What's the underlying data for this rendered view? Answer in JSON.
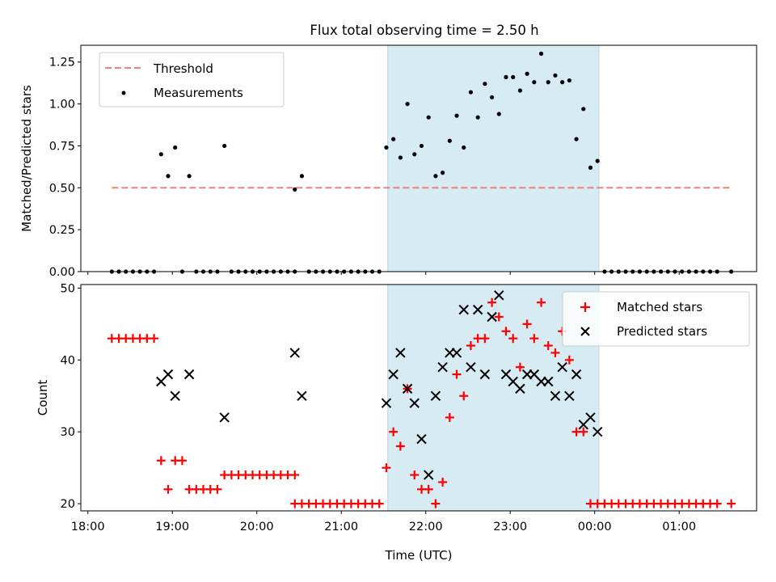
{
  "figure": {
    "title": "Flux total observing time = 2.50 h",
    "xlabel": "Time (UTC)",
    "x_ticks": [
      "18:00",
      "19:00",
      "20:00",
      "21:00",
      "22:00",
      "23:00",
      "00:00",
      "01:00"
    ]
  },
  "colors": {
    "threshold": "#f08080",
    "measurement": "#000000",
    "matched": "#ff0000",
    "predicted": "#000000",
    "span": "#add8e6"
  },
  "chart_data": [
    {
      "type": "scatter",
      "title": "Flux total observing time = 2.50 h",
      "ylabel": "Matched/Predicted stars",
      "xlim": [
        "17:55",
        "01:55"
      ],
      "ylim": [
        0,
        1.35
      ],
      "y_ticks": [
        "0.00",
        "0.25",
        "0.50",
        "0.75",
        "1.00",
        "1.25"
      ],
      "legend_position": "top-left",
      "highlight_span": [
        "21:33",
        "00:03"
      ],
      "threshold": {
        "name": "Threshold",
        "y": 0.5,
        "x": [
          "18:17",
          "01:37"
        ]
      },
      "series": [
        {
          "name": "Measurements",
          "points": [
            [
              "18:17",
              0
            ],
            [
              "18:22",
              0
            ],
            [
              "18:27",
              0
            ],
            [
              "18:32",
              0
            ],
            [
              "18:37",
              0
            ],
            [
              "18:42",
              0
            ],
            [
              "18:47",
              0
            ],
            [
              "18:52",
              0.7
            ],
            [
              "18:57",
              0.57
            ],
            [
              "19:02",
              0.74
            ],
            [
              "19:07",
              0
            ],
            [
              "19:12",
              0.57
            ],
            [
              "19:17",
              0
            ],
            [
              "19:22",
              0
            ],
            [
              "19:27",
              0
            ],
            [
              "19:32",
              0
            ],
            [
              "19:37",
              0.75
            ],
            [
              "19:42",
              0
            ],
            [
              "19:47",
              0
            ],
            [
              "19:52",
              0
            ],
            [
              "19:57",
              0
            ],
            [
              "20:02",
              0
            ],
            [
              "20:07",
              0
            ],
            [
              "20:12",
              0
            ],
            [
              "20:17",
              0
            ],
            [
              "20:22",
              0
            ],
            [
              "20:27",
              0
            ],
            [
              "20:27",
              0.49
            ],
            [
              "20:32",
              0.57
            ],
            [
              "20:37",
              0
            ],
            [
              "20:42",
              0
            ],
            [
              "20:47",
              0
            ],
            [
              "20:52",
              0
            ],
            [
              "20:57",
              0
            ],
            [
              "21:02",
              0
            ],
            [
              "21:07",
              0
            ],
            [
              "21:12",
              0
            ],
            [
              "21:17",
              0
            ],
            [
              "21:22",
              0
            ],
            [
              "21:27",
              0
            ],
            [
              "21:32",
              0.74
            ],
            [
              "21:37",
              0.79
            ],
            [
              "21:42",
              0.68
            ],
            [
              "21:47",
              1.0
            ],
            [
              "21:52",
              0.7
            ],
            [
              "21:57",
              0.75
            ],
            [
              "22:02",
              0.92
            ],
            [
              "22:07",
              0.57
            ],
            [
              "22:12",
              0.59
            ],
            [
              "22:17",
              0.78
            ],
            [
              "22:22",
              0.93
            ],
            [
              "22:27",
              0.74
            ],
            [
              "22:32",
              1.07
            ],
            [
              "22:37",
              0.92
            ],
            [
              "22:42",
              1.12
            ],
            [
              "22:47",
              1.04
            ],
            [
              "22:52",
              0.94
            ],
            [
              "22:57",
              1.16
            ],
            [
              "23:02",
              1.16
            ],
            [
              "23:07",
              1.08
            ],
            [
              "23:12",
              1.18
            ],
            [
              "23:17",
              1.13
            ],
            [
              "23:22",
              1.3
            ],
            [
              "23:27",
              1.13
            ],
            [
              "23:32",
              1.17
            ],
            [
              "23:37",
              1.13
            ],
            [
              "23:42",
              1.14
            ],
            [
              "23:47",
              0.79
            ],
            [
              "23:52",
              0.97
            ],
            [
              "23:57",
              0.62
            ],
            [
              "00:02",
              0.66
            ],
            [
              "00:07",
              0
            ],
            [
              "00:12",
              0
            ],
            [
              "00:17",
              0
            ],
            [
              "00:22",
              0
            ],
            [
              "00:27",
              0
            ],
            [
              "00:32",
              0
            ],
            [
              "00:37",
              0
            ],
            [
              "00:42",
              0
            ],
            [
              "00:47",
              0
            ],
            [
              "00:52",
              0
            ],
            [
              "00:57",
              0
            ],
            [
              "01:02",
              0
            ],
            [
              "01:07",
              0
            ],
            [
              "01:12",
              0
            ],
            [
              "01:17",
              0
            ],
            [
              "01:22",
              0
            ],
            [
              "01:27",
              0
            ],
            [
              "01:37",
              0
            ]
          ]
        }
      ]
    },
    {
      "type": "scatter",
      "ylabel": "Count",
      "xlabel": "Time (UTC)",
      "xlim": [
        "17:55",
        "01:55"
      ],
      "ylim": [
        19,
        50.5
      ],
      "y_ticks": [
        "20",
        "30",
        "40",
        "50"
      ],
      "legend_position": "top-right",
      "highlight_span": [
        "21:33",
        "00:03"
      ],
      "series": [
        {
          "name": "Matched stars",
          "marker": "plus",
          "points": [
            [
              "18:17",
              43
            ],
            [
              "18:22",
              43
            ],
            [
              "18:27",
              43
            ],
            [
              "18:32",
              43
            ],
            [
              "18:37",
              43
            ],
            [
              "18:42",
              43
            ],
            [
              "18:47",
              43
            ],
            [
              "18:52",
              26
            ],
            [
              "18:57",
              22
            ],
            [
              "19:02",
              26
            ],
            [
              "19:07",
              26
            ],
            [
              "19:12",
              22
            ],
            [
              "19:17",
              22
            ],
            [
              "19:22",
              22
            ],
            [
              "19:27",
              22
            ],
            [
              "19:32",
              22
            ],
            [
              "19:37",
              24
            ],
            [
              "19:42",
              24
            ],
            [
              "19:47",
              24
            ],
            [
              "19:52",
              24
            ],
            [
              "19:57",
              24
            ],
            [
              "20:02",
              24
            ],
            [
              "20:07",
              24
            ],
            [
              "20:12",
              24
            ],
            [
              "20:17",
              24
            ],
            [
              "20:22",
              24
            ],
            [
              "20:27",
              24
            ],
            [
              "20:27",
              20
            ],
            [
              "20:32",
              20
            ],
            [
              "20:37",
              20
            ],
            [
              "20:42",
              20
            ],
            [
              "20:47",
              20
            ],
            [
              "20:52",
              20
            ],
            [
              "20:57",
              20
            ],
            [
              "21:02",
              20
            ],
            [
              "21:07",
              20
            ],
            [
              "21:12",
              20
            ],
            [
              "21:17",
              20
            ],
            [
              "21:22",
              20
            ],
            [
              "21:27",
              20
            ],
            [
              "21:32",
              25
            ],
            [
              "21:37",
              30
            ],
            [
              "21:42",
              28
            ],
            [
              "21:47",
              36
            ],
            [
              "21:52",
              24
            ],
            [
              "21:57",
              22
            ],
            [
              "22:02",
              22
            ],
            [
              "22:07",
              20
            ],
            [
              "22:12",
              23
            ],
            [
              "22:17",
              32
            ],
            [
              "22:22",
              38
            ],
            [
              "22:27",
              35
            ],
            [
              "22:32",
              42
            ],
            [
              "22:37",
              43
            ],
            [
              "22:42",
              43
            ],
            [
              "22:47",
              48
            ],
            [
              "22:52",
              46
            ],
            [
              "22:57",
              44
            ],
            [
              "23:02",
              43
            ],
            [
              "23:07",
              39
            ],
            [
              "23:12",
              45
            ],
            [
              "23:17",
              43
            ],
            [
              "23:22",
              48
            ],
            [
              "23:27",
              42
            ],
            [
              "23:32",
              41
            ],
            [
              "23:37",
              44
            ],
            [
              "23:42",
              40
            ],
            [
              "23:47",
              30
            ],
            [
              "23:52",
              30
            ],
            [
              "23:57",
              20
            ],
            [
              "00:02",
              20
            ],
            [
              "00:07",
              20
            ],
            [
              "00:12",
              20
            ],
            [
              "00:17",
              20
            ],
            [
              "00:22",
              20
            ],
            [
              "00:27",
              20
            ],
            [
              "00:32",
              20
            ],
            [
              "00:37",
              20
            ],
            [
              "00:42",
              20
            ],
            [
              "00:47",
              20
            ],
            [
              "00:52",
              20
            ],
            [
              "00:57",
              20
            ],
            [
              "01:02",
              20
            ],
            [
              "01:07",
              20
            ],
            [
              "01:12",
              20
            ],
            [
              "01:17",
              20
            ],
            [
              "01:22",
              20
            ],
            [
              "01:27",
              20
            ],
            [
              "01:37",
              20
            ]
          ]
        },
        {
          "name": "Predicted stars",
          "marker": "x",
          "points": [
            [
              "18:52",
              37
            ],
            [
              "18:57",
              38
            ],
            [
              "19:02",
              35
            ],
            [
              "19:12",
              38
            ],
            [
              "19:37",
              32
            ],
            [
              "20:27",
              41
            ],
            [
              "20:32",
              35
            ],
            [
              "21:32",
              34
            ],
            [
              "21:37",
              38
            ],
            [
              "21:42",
              41
            ],
            [
              "21:47",
              36
            ],
            [
              "21:52",
              34
            ],
            [
              "21:57",
              29
            ],
            [
              "22:02",
              24
            ],
            [
              "22:07",
              35
            ],
            [
              "22:12",
              39
            ],
            [
              "22:17",
              41
            ],
            [
              "22:22",
              41
            ],
            [
              "22:27",
              47
            ],
            [
              "22:32",
              39
            ],
            [
              "22:37",
              47
            ],
            [
              "22:42",
              38
            ],
            [
              "22:47",
              46
            ],
            [
              "22:52",
              49
            ],
            [
              "22:57",
              38
            ],
            [
              "23:02",
              37
            ],
            [
              "23:07",
              36
            ],
            [
              "23:12",
              38
            ],
            [
              "23:17",
              38
            ],
            [
              "23:22",
              37
            ],
            [
              "23:27",
              37
            ],
            [
              "23:32",
              35
            ],
            [
              "23:37",
              39
            ],
            [
              "23:42",
              35
            ],
            [
              "23:47",
              38
            ],
            [
              "23:52",
              31
            ],
            [
              "23:57",
              32
            ],
            [
              "00:02",
              30
            ]
          ]
        }
      ]
    }
  ]
}
